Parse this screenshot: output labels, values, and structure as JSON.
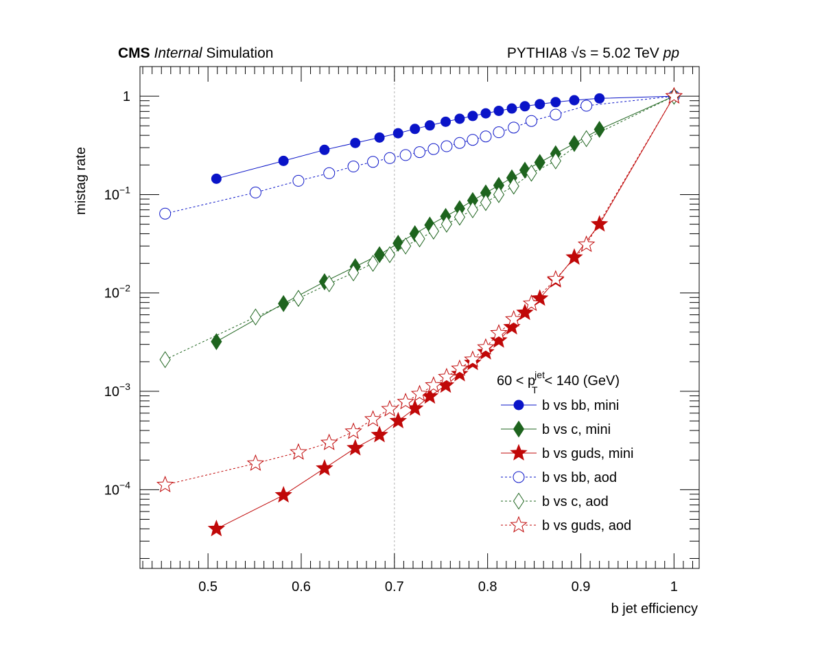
{
  "header": {
    "left_bold": "CMS",
    "left_italic": "Internal",
    "left_rest": "Simulation",
    "right_generator": "PYTHIA8",
    "right_sqrt": "√s",
    "right_energy": "= 5.02 TeV",
    "right_system": "pp"
  },
  "chart_data": {
    "type": "line",
    "xlabel": "b jet efficiency",
    "ylabel": "mistag rate",
    "xlim": [
      0.427,
      1.027
    ],
    "ylim": [
      1.585e-05,
      2.0
    ],
    "yscale": "log",
    "grid": false,
    "reference_line_x": 0.7,
    "x_ticks": [
      {
        "v": 0.5,
        "label": "0.5"
      },
      {
        "v": 0.6,
        "label": "0.6"
      },
      {
        "v": 0.7,
        "label": "0.7"
      },
      {
        "v": 0.8,
        "label": "0.8"
      },
      {
        "v": 0.9,
        "label": "0.9"
      },
      {
        "v": 1.0,
        "label": "1"
      }
    ],
    "y_ticks": [
      {
        "v": 1,
        "base": "1",
        "exp": ""
      },
      {
        "v": 0.1,
        "base": "10",
        "exp": "−1"
      },
      {
        "v": 0.01,
        "base": "10",
        "exp": "−2"
      },
      {
        "v": 0.001,
        "base": "10",
        "exp": "−3"
      },
      {
        "v": 0.0001,
        "base": "10",
        "exp": "−4"
      }
    ],
    "legend": {
      "placement": "bottom-right",
      "header_a": "60 < p",
      "header_sub": "T",
      "header_sup": "jet",
      "header_b": "< 140 (GeV)",
      "entries": [
        {
          "label": "b vs bb, mini"
        },
        {
          "label": "b vs c, mini"
        },
        {
          "label": "b vs guds, mini"
        },
        {
          "label": "b vs bb, aod"
        },
        {
          "label": "b vs c, aod"
        },
        {
          "label": "b vs guds, aod"
        }
      ]
    },
    "series": [
      {
        "key": "bb_mini",
        "color": "#0a14c8",
        "marker": "circle",
        "filled": true,
        "dashed": false,
        "x": [
          0.509,
          0.581,
          0.625,
          0.658,
          0.684,
          0.704,
          0.722,
          0.738,
          0.755,
          0.77,
          0.784,
          0.798,
          0.812,
          0.826,
          0.84,
          0.856,
          0.873,
          0.893,
          0.92,
          1.0
        ],
        "y": [
          0.145,
          0.22,
          0.285,
          0.335,
          0.38,
          0.42,
          0.465,
          0.505,
          0.55,
          0.59,
          0.63,
          0.67,
          0.71,
          0.75,
          0.79,
          0.83,
          0.87,
          0.91,
          0.95,
          1.0
        ]
      },
      {
        "key": "c_mini",
        "color": "#1e641e",
        "marker": "diamond",
        "filled": true,
        "dashed": false,
        "x": [
          0.509,
          0.581,
          0.625,
          0.658,
          0.684,
          0.704,
          0.722,
          0.738,
          0.755,
          0.77,
          0.784,
          0.798,
          0.812,
          0.826,
          0.84,
          0.856,
          0.873,
          0.893,
          0.92,
          1.0
        ],
        "y": [
          0.0032,
          0.0078,
          0.013,
          0.0185,
          0.0245,
          0.032,
          0.04,
          0.049,
          0.06,
          0.072,
          0.087,
          0.104,
          0.124,
          0.148,
          0.177,
          0.212,
          0.26,
          0.33,
          0.46,
          1.0
        ]
      },
      {
        "key": "guds_mini",
        "color": "#c00808",
        "marker": "star",
        "filled": true,
        "dashed": false,
        "x": [
          0.509,
          0.581,
          0.625,
          0.658,
          0.684,
          0.704,
          0.722,
          0.738,
          0.755,
          0.77,
          0.784,
          0.798,
          0.812,
          0.826,
          0.84,
          0.856,
          0.873,
          0.893,
          0.92,
          1.0
        ],
        "y": [
          4e-05,
          8.8e-05,
          0.000165,
          0.000265,
          0.00036,
          0.0005,
          0.00067,
          0.00089,
          0.00115,
          0.0015,
          0.00195,
          0.0025,
          0.0033,
          0.0045,
          0.0063,
          0.0088,
          0.0135,
          0.023,
          0.05,
          1.0
        ]
      },
      {
        "key": "bb_aod",
        "color": "#0a14c8",
        "marker": "circle",
        "filled": false,
        "dashed": true,
        "x": [
          0.454,
          0.551,
          0.597,
          0.63,
          0.656,
          0.677,
          0.695,
          0.712,
          0.727,
          0.742,
          0.756,
          0.77,
          0.784,
          0.798,
          0.812,
          0.828,
          0.847,
          0.873,
          0.906,
          1.0
        ],
        "y": [
          0.064,
          0.105,
          0.138,
          0.165,
          0.193,
          0.215,
          0.235,
          0.252,
          0.27,
          0.29,
          0.31,
          0.335,
          0.36,
          0.39,
          0.43,
          0.48,
          0.56,
          0.65,
          0.8,
          1.0
        ]
      },
      {
        "key": "c_aod",
        "color": "#1e641e",
        "marker": "diamond",
        "filled": false,
        "dashed": true,
        "x": [
          0.454,
          0.551,
          0.597,
          0.63,
          0.656,
          0.677,
          0.695,
          0.712,
          0.727,
          0.742,
          0.756,
          0.77,
          0.784,
          0.798,
          0.812,
          0.828,
          0.847,
          0.873,
          0.906,
          1.0
        ],
        "y": [
          0.0021,
          0.0057,
          0.0088,
          0.0124,
          0.016,
          0.02,
          0.0245,
          0.03,
          0.0355,
          0.0425,
          0.05,
          0.059,
          0.07,
          0.083,
          0.1,
          0.122,
          0.165,
          0.22,
          0.37,
          1.0
        ]
      },
      {
        "key": "guds_aod",
        "color": "#c00808",
        "marker": "star",
        "filled": false,
        "dashed": true,
        "x": [
          0.454,
          0.551,
          0.597,
          0.63,
          0.656,
          0.677,
          0.695,
          0.712,
          0.727,
          0.742,
          0.756,
          0.77,
          0.784,
          0.798,
          0.812,
          0.828,
          0.847,
          0.873,
          0.906,
          1.0
        ],
        "y": [
          0.000112,
          0.000185,
          0.00024,
          0.0003,
          0.00039,
          0.00052,
          0.00066,
          0.00078,
          0.00094,
          0.00115,
          0.0014,
          0.0017,
          0.0021,
          0.0028,
          0.0039,
          0.0054,
          0.0078,
          0.0138,
          0.031,
          1.0
        ]
      }
    ]
  }
}
